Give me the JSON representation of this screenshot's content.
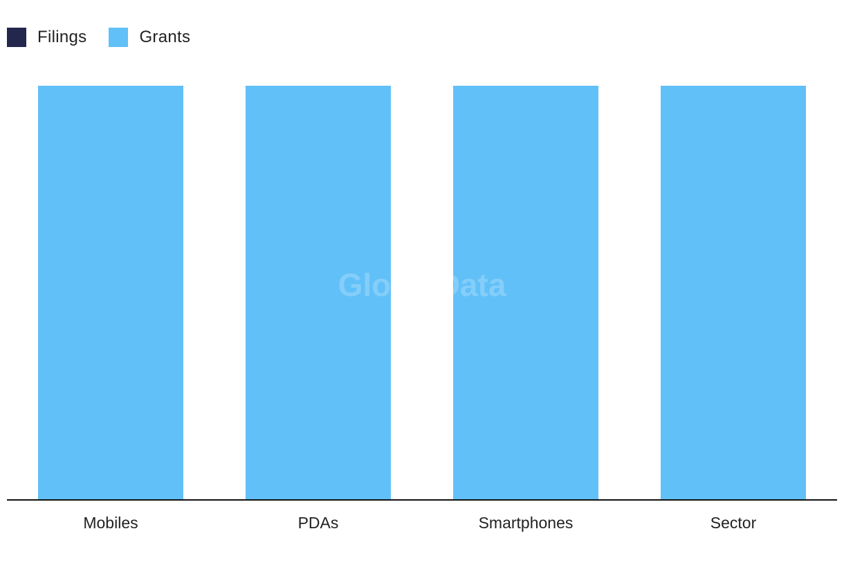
{
  "legend": {
    "items": [
      {
        "label": "Filings",
        "color": "#23264d"
      },
      {
        "label": "Grants",
        "color": "#62c0f8"
      }
    ]
  },
  "watermark": "GlobalData",
  "colors": {
    "axis": "#111111",
    "grants": "#62c0f8",
    "filings": "#23264d"
  },
  "chart_data": {
    "type": "bar",
    "categories": [
      "Mobiles",
      "PDAs",
      "Smartphones",
      "Sector"
    ],
    "series": [
      {
        "name": "Filings",
        "values": [
          0,
          0,
          0,
          0
        ]
      },
      {
        "name": "Grants",
        "values": [
          100,
          100,
          100,
          100
        ]
      }
    ],
    "ylim": [
      0,
      100
    ],
    "grid": false,
    "legend_position": "top-left"
  }
}
